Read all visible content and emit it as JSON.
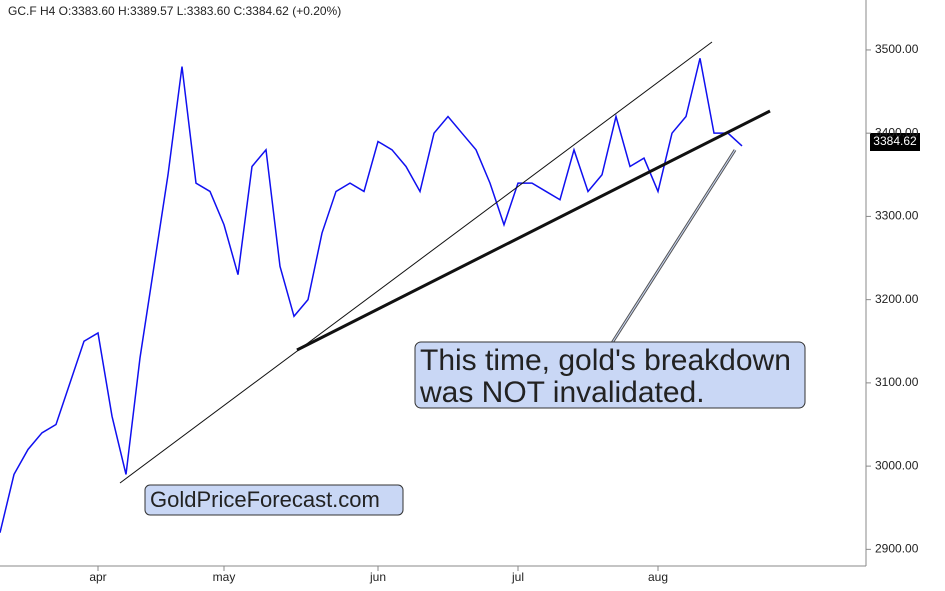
{
  "chart_data": {
    "type": "line",
    "title": "GC.F  H4  O:3383.60  H:3389.57  L:3383.60  C:3384.62  (+0.20%)",
    "last_price_label": "3384.62",
    "annotations": [
      "This time, gold's breakdown",
      "was NOT invalidated.",
      "GoldPriceForecast.com"
    ],
    "categories": [
      null,
      null,
      null,
      null,
      null,
      null,
      null,
      "apr",
      null,
      null,
      null,
      null,
      null,
      null,
      null,
      null,
      "may",
      null,
      null,
      null,
      null,
      null,
      null,
      null,
      null,
      null,
      null,
      "jun",
      null,
      null,
      null,
      null,
      null,
      null,
      null,
      null,
      null,
      "jul",
      null,
      null,
      null,
      null,
      null,
      null,
      null,
      null,
      null,
      "aug",
      null,
      null,
      null,
      null,
      null,
      null
    ],
    "series": [
      {
        "name": "GC.F",
        "color": "#1010f0",
        "values": [
          2920,
          2990,
          3020,
          3040,
          3050,
          3100,
          3150,
          3160,
          3060,
          2990,
          3130,
          3240,
          3350,
          3480,
          3340,
          3330,
          3290,
          3230,
          3360,
          3380,
          3240,
          3180,
          3200,
          3280,
          3330,
          3340,
          3330,
          3390,
          3380,
          3360,
          3330,
          3400,
          3420,
          3400,
          3380,
          3340,
          3290,
          3340,
          3340,
          3330,
          3320,
          3380,
          3330,
          3350,
          3420,
          3360,
          3370,
          3330,
          3400,
          3420,
          3490,
          3400,
          3400,
          3384.62
        ]
      }
    ],
    "ylim": [
      2880,
      3560
    ],
    "yticks": [
      {
        "value": 2900,
        "label": "2900.00"
      },
      {
        "value": 3000,
        "label": "3000.00"
      },
      {
        "value": 3100,
        "label": "3100.00"
      },
      {
        "value": 3200,
        "label": "3200.00"
      },
      {
        "value": 3300,
        "label": "3300.00"
      },
      {
        "value": 3400,
        "label": "3400.00"
      },
      {
        "value": 3500,
        "label": "3500.00"
      }
    ]
  }
}
